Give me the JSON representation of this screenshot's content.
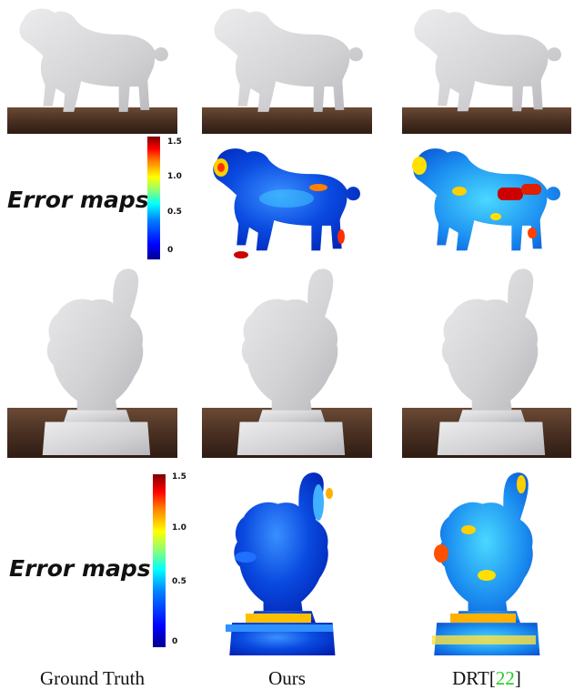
{
  "error_label": "Error maps",
  "colorbar_ticks": [
    "1.5",
    "1.0",
    "0.5",
    "0"
  ],
  "captions": {
    "ground_truth": "Ground Truth",
    "ours": "Ours",
    "drt_prefix": "DRT[",
    "drt_ref": "22",
    "drt_suffix": "]"
  },
  "colors": {
    "table": "#4a3022",
    "wall": "#ffffff",
    "model": "#d9d9db",
    "citation": "#22cc22"
  },
  "panels": {
    "row1": [
      "lion-photo",
      "lion-photo",
      "lion-photo"
    ],
    "row2": [
      "colorbar",
      "lion-error-map-ours",
      "lion-error-map-drt"
    ],
    "row3": [
      "thumb-photo",
      "thumb-photo",
      "thumb-photo"
    ],
    "row4": [
      "colorbar",
      "thumb-error-map-ours",
      "thumb-error-map-drt"
    ]
  }
}
